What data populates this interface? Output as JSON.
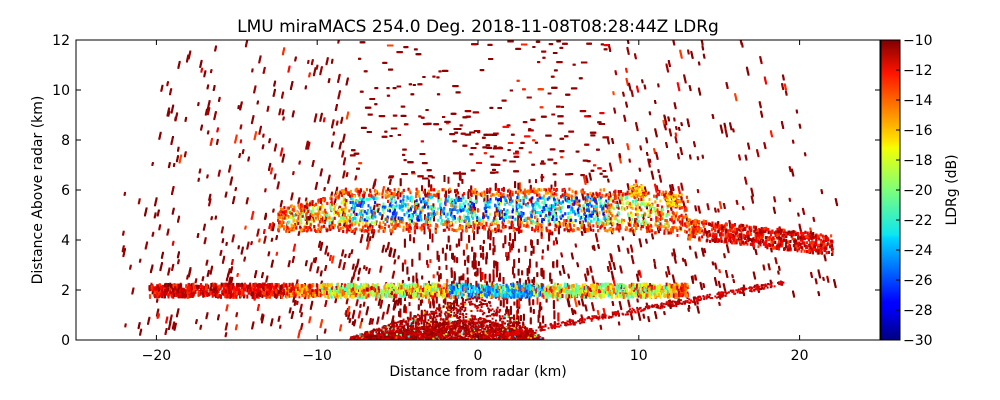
{
  "chart_data": {
    "type": "heatmap",
    "title": "LMU miraMACS 254.0 Deg. 2018-11-08T08:28:44Z  LDRg",
    "xlabel": "Distance from radar (km)",
    "ylabel": "Distance Above radar  (km)",
    "xlim": [
      -25,
      25
    ],
    "ylim": [
      0,
      12
    ],
    "xticks": [
      -20,
      -10,
      0,
      10,
      20
    ],
    "xtick_labels": [
      "−20",
      "−10",
      "0",
      "10",
      "20"
    ],
    "yticks": [
      0,
      2,
      4,
      6,
      8,
      10,
      12
    ],
    "ytick_labels": [
      "0",
      "2",
      "4",
      "6",
      "8",
      "10",
      "12"
    ],
    "grid": false,
    "colorbar": {
      "label": "LDRg (dB)",
      "colormap": "jet",
      "range": [
        -30,
        -10
      ],
      "ticks": [
        -10,
        -12,
        -14,
        -16,
        -18,
        -20,
        -22,
        -24,
        -26,
        -28,
        -30
      ],
      "tick_labels": [
        "−10",
        "−12",
        "−14",
        "−16",
        "−18",
        "−20",
        "−22",
        "−24",
        "−26",
        "−28",
        "−30"
      ],
      "placement": "right"
    },
    "features": [
      {
        "name": "upper-cloud-layer",
        "x_range_km": [
          -12.5,
          22
        ],
        "height_km": [
          4.3,
          6.1
        ],
        "core_x_km": [
          -8,
          8
        ],
        "ldr_db_core": [
          -28,
          -20
        ],
        "ldr_db_edge": [
          -16,
          -11
        ]
      },
      {
        "name": "lower-melting-layer",
        "x_range_km": [
          -20.5,
          13
        ],
        "height_km": [
          1.8,
          2.3
        ],
        "core_x_km": [
          -2,
          4
        ],
        "ldr_db_core": [
          -27,
          -22
        ],
        "ldr_db_edge": [
          -17,
          -11
        ]
      },
      {
        "name": "near-radar-clutter",
        "x_range_km": [
          -8,
          4
        ],
        "height_km": [
          0,
          2
        ],
        "ldr_db": [
          -12,
          -10
        ]
      },
      {
        "name": "sparse-returns",
        "x_range_km": [
          -22,
          22
        ],
        "height_km": [
          0,
          12
        ],
        "ldr_db": [
          -11,
          -10
        ]
      },
      {
        "name": "small-echo-1",
        "x_center_km": 9.8,
        "height_km": 6.0,
        "ldr_db": [
          -18,
          -14
        ]
      },
      {
        "name": "small-echo-2",
        "x_center_km": 12.1,
        "height_km": 5.6,
        "ldr_db": [
          -18,
          -14
        ]
      }
    ]
  }
}
